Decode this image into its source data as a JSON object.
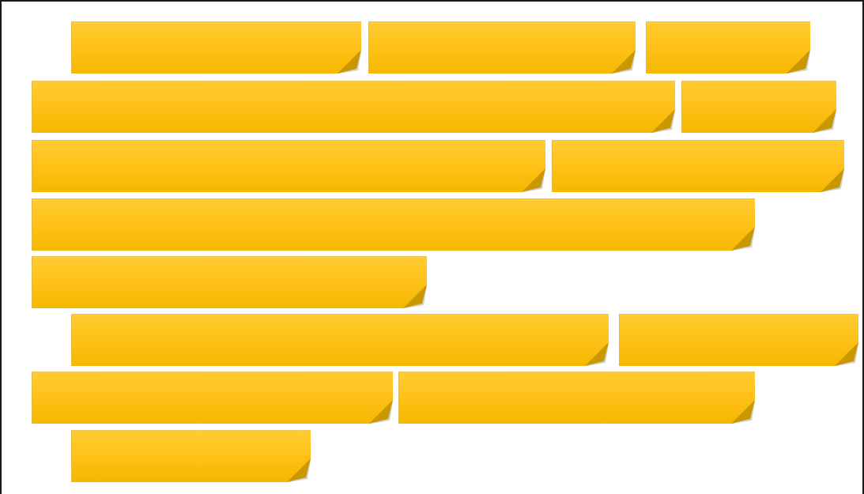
{
  "title": "",
  "colors": {
    "note_top": "#ffcc33",
    "note_bottom": "#f5b800",
    "fold": "#c99700",
    "frame": "#1a1a1a",
    "background": "#ffffff"
  },
  "rows": [
    {
      "notes": [
        {
          "label": ""
        },
        {
          "label": ""
        },
        {
          "label": ""
        }
      ]
    },
    {
      "notes": [
        {
          "label": ""
        },
        {
          "label": ""
        }
      ]
    },
    {
      "notes": [
        {
          "label": ""
        },
        {
          "label": ""
        }
      ]
    },
    {
      "notes": [
        {
          "label": ""
        }
      ]
    },
    {
      "notes": [
        {
          "label": ""
        }
      ]
    },
    {
      "notes": [
        {
          "label": ""
        },
        {
          "label": ""
        }
      ]
    },
    {
      "notes": [
        {
          "label": ""
        },
        {
          "label": ""
        }
      ]
    },
    {
      "notes": [
        {
          "label": ""
        }
      ]
    }
  ]
}
